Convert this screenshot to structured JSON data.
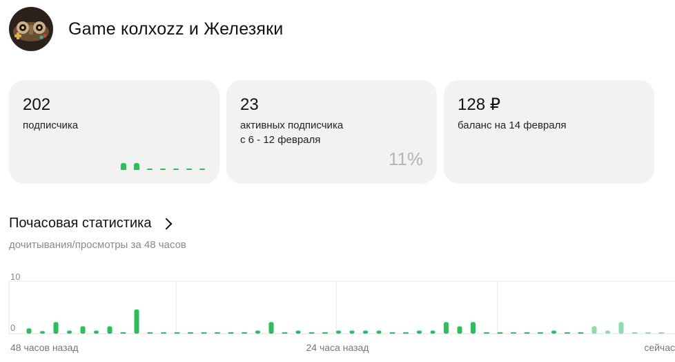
{
  "channel": {
    "title": "Game колхоzz и Железяки",
    "avatar_icon": "gamepad-skull-avatar"
  },
  "cards": [
    {
      "value": "202",
      "label": "подписчика",
      "mini_chart": [
        1,
        1,
        0,
        0,
        0,
        0,
        0
      ]
    },
    {
      "value": "23",
      "label": "активных подписчика\nс 6 - 12 февраля",
      "percent": "11%"
    },
    {
      "value": "128 ₽",
      "label": "баланс на 14 февраля"
    }
  ],
  "hourly": {
    "title": "Почасовая статистика",
    "subtitle": "дочитывания/просмотры за 48 часов",
    "link_icon": "chevron-right-icon"
  },
  "chart_data": {
    "type": "bar",
    "ylim": [
      0,
      10
    ],
    "yticks": [
      "10",
      "0"
    ],
    "xticks": [
      "48 часов назад",
      "24 часа назад",
      "сейчас"
    ],
    "grid": true,
    "colors": {
      "past": "#2bbf5b",
      "recent": "#8fdcaa"
    },
    "values": [
      1,
      0.5,
      2.2,
      0.6,
      1.4,
      0.6,
      1.4,
      0,
      4.6,
      0,
      0,
      0,
      0,
      0,
      0,
      0,
      0,
      0.6,
      2.2,
      0,
      0.6,
      0,
      0,
      0.6,
      0.6,
      0.6,
      0.6,
      0,
      0,
      0.6,
      0.6,
      2.2,
      1.4,
      2.2,
      0,
      0,
      0,
      0,
      0,
      0.6,
      0,
      0,
      1.4,
      0.6,
      2.2,
      0,
      0,
      0
    ],
    "recent_from_index": 42
  }
}
